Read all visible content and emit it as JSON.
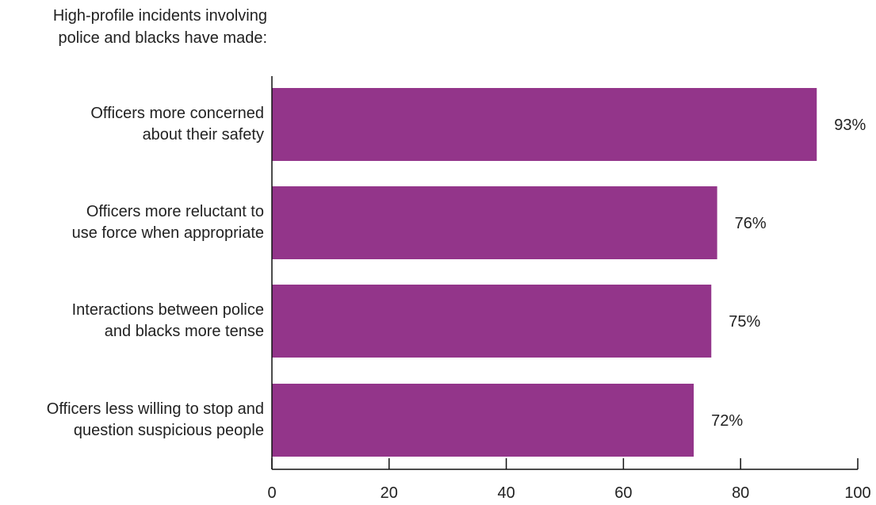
{
  "chart_data": {
    "type": "bar",
    "orientation": "horizontal",
    "title": "High-profile incidents involving\npolice and blacks have made:",
    "categories": [
      "Officers more concerned\nabout their safety",
      "Officers more reluctant to\nuse force when appropriate",
      "Interactions between police\nand blacks more tense",
      "Officers less willing to stop and\nquestion suspicious people"
    ],
    "values": [
      93,
      76,
      75,
      72
    ],
    "value_labels": [
      "93%",
      "76%",
      "75%",
      "72%"
    ],
    "xlim": [
      0,
      100
    ],
    "x_ticks": [
      0,
      20,
      40,
      60,
      80,
      100
    ],
    "x_tick_labels": [
      "0",
      "20",
      "40",
      "60",
      "80",
      "100"
    ],
    "grid": false,
    "colors": {
      "bar": "#93358a",
      "axis": "#111111",
      "text": "#222222"
    }
  }
}
